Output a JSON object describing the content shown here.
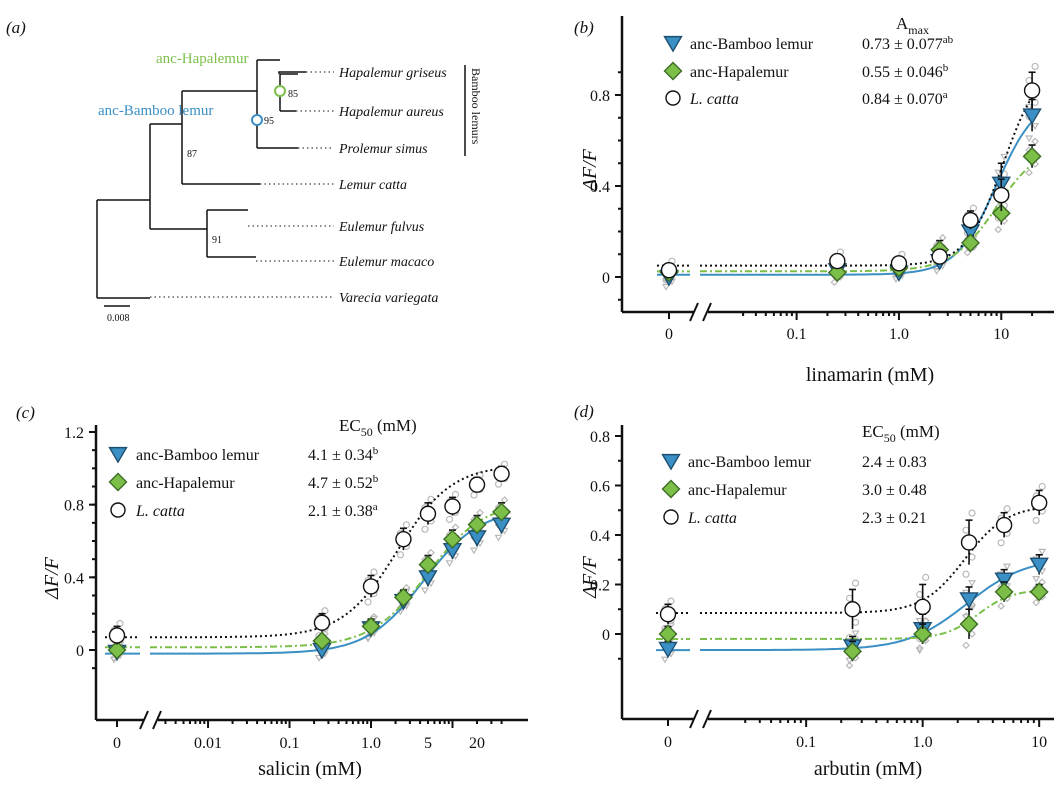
{
  "colors": {
    "bamboo": "#3a8fc4",
    "hapalemur": "#7cbf48",
    "catta": "#111111",
    "replicate_grey": "#b9b9b9"
  },
  "tree": {
    "panel_label": "(a)",
    "taxa": [
      "Hapalemur griseus",
      "Hapalemur aureus",
      "Prolemur simus",
      "Lemur catta",
      "Eulemur fulvus",
      "Eulemur macaco",
      "Varecia variegata"
    ],
    "node_labels": {
      "anc_hapalemur": "anc-Hapalemur",
      "anc_bamboo": "anc-Bamboo lemur"
    },
    "bootstrap": [
      "85",
      "95",
      "87",
      "91"
    ],
    "clade_label": "Bamboo lemurs",
    "scale_bar": "0.008"
  },
  "chart_data": [
    {
      "panel": "(b)",
      "type": "scatter",
      "xlabel": "linamarin (mM)",
      "ylabel": "ΔF/F",
      "x_scale": "log with broken axis at 0",
      "x_ticks": [
        "0",
        "0.1",
        "1.0",
        "10"
      ],
      "y_ticks": [
        "0",
        "0.4",
        "0.8"
      ],
      "ylim": [
        -0.15,
        0.95
      ],
      "legend_header": "A",
      "legend_header_sub": "max",
      "legend_position": "top-right",
      "series": [
        {
          "name": "anc-Bamboo lemur",
          "value": "0.73 ± 0.077",
          "sup": "ab",
          "x": [
            0,
            0.25,
            1,
            2.5,
            5,
            10,
            20
          ],
          "y": [
            0.0,
            0.03,
            0.02,
            0.07,
            0.2,
            0.41,
            0.71
          ],
          "err": [
            0.03,
            0.02,
            0.02,
            0.03,
            0.05,
            0.09,
            0.07
          ]
        },
        {
          "name": "anc-Hapalemur",
          "value": "0.55 ± 0.046",
          "sup": "b",
          "x": [
            0,
            0.25,
            1,
            2.5,
            5,
            10,
            20
          ],
          "y": [
            0.02,
            0.02,
            0.04,
            0.12,
            0.15,
            0.28,
            0.53
          ],
          "err": [
            0.02,
            0.03,
            0.02,
            0.04,
            0.03,
            0.05,
            0.05
          ]
        },
        {
          "name": "L. catta",
          "value": "0.84 ± 0.070",
          "sup": "a",
          "x": [
            0,
            0.25,
            1,
            2.5,
            5,
            10,
            20
          ],
          "y": [
            0.03,
            0.07,
            0.06,
            0.09,
            0.25,
            0.36,
            0.82
          ],
          "err": [
            0.03,
            0.03,
            0.03,
            0.03,
            0.04,
            0.07,
            0.08
          ]
        }
      ]
    },
    {
      "panel": "(c)",
      "type": "scatter",
      "xlabel": "salicin (mM)",
      "ylabel": "ΔF/F",
      "x_scale": "log with broken axis at 0",
      "x_ticks": [
        "0",
        "0.01",
        "0.1",
        "1.0",
        "5",
        "20"
      ],
      "y_ticks": [
        "0",
        "0.4",
        "0.8",
        "1.2"
      ],
      "ylim": [
        -0.2,
        1.25
      ],
      "legend_header": "EC",
      "legend_header_sub": "50",
      "legend_header_tail": " (mM)",
      "legend_position": "top-left",
      "series": [
        {
          "name": "anc-Bamboo lemur",
          "value": "4.1 ± 0.34",
          "sup": "b",
          "x": [
            0,
            0.25,
            1,
            2.5,
            5,
            10,
            20,
            40
          ],
          "y": [
            -0.01,
            0.0,
            0.12,
            0.27,
            0.4,
            0.55,
            0.62,
            0.69
          ],
          "err": [
            0.03,
            0.03,
            0.04,
            0.04,
            0.05,
            0.05,
            0.05,
            0.05
          ]
        },
        {
          "name": "anc-Hapalemur",
          "value": "4.7 ± 0.52",
          "sup": "b",
          "x": [
            0,
            0.25,
            1,
            2.5,
            5,
            10,
            20,
            40
          ],
          "y": [
            0.0,
            0.05,
            0.13,
            0.29,
            0.47,
            0.61,
            0.69,
            0.76
          ],
          "err": [
            0.03,
            0.03,
            0.04,
            0.04,
            0.05,
            0.05,
            0.05,
            0.05
          ]
        },
        {
          "name": "L. catta",
          "value": "2.1 ± 0.38",
          "sup": "a",
          "x": [
            0,
            0.25,
            1,
            2.5,
            5,
            10,
            20,
            40
          ],
          "y": [
            0.08,
            0.15,
            0.35,
            0.61,
            0.75,
            0.79,
            0.91,
            0.97
          ],
          "err": [
            0.05,
            0.05,
            0.06,
            0.06,
            0.06,
            0.05,
            0.04,
            0.04
          ]
        }
      ]
    },
    {
      "panel": "(d)",
      "type": "scatter",
      "xlabel": "arbutin (mM)",
      "ylabel": "ΔF/F",
      "x_scale": "log with broken axis at 0",
      "x_ticks": [
        "0",
        "0.1",
        "1.0",
        "10"
      ],
      "y_ticks": [
        "0",
        "0.2",
        "0.4",
        "0.6",
        "0.8"
      ],
      "ylim": [
        -0.15,
        0.82
      ],
      "legend_header": "EC",
      "legend_header_sub": "50",
      "legend_header_tail": " (mM)",
      "legend_position": "top-left",
      "series": [
        {
          "name": "anc-Bamboo lemur",
          "value": "2.4 ± 0.83",
          "sup": "",
          "x": [
            0,
            0.25,
            1,
            2.5,
            5,
            10
          ],
          "y": [
            -0.06,
            -0.05,
            0.02,
            0.14,
            0.22,
            0.28
          ],
          "err": [
            0.03,
            0.04,
            0.06,
            0.05,
            0.04,
            0.04
          ]
        },
        {
          "name": "anc-Hapalemur",
          "value": "3.0 ± 0.48",
          "sup": "",
          "x": [
            0,
            0.25,
            1,
            2.5,
            5,
            10
          ],
          "y": [
            0.0,
            -0.07,
            0.0,
            0.04,
            0.17,
            0.17
          ],
          "err": [
            0.03,
            0.04,
            0.04,
            0.06,
            0.04,
            0.03
          ]
        },
        {
          "name": "L. catta",
          "value": "2.3 ± 0.21",
          "sup": "",
          "x": [
            0,
            0.25,
            1,
            2.5,
            5,
            10
          ],
          "y": [
            0.08,
            0.1,
            0.11,
            0.37,
            0.44,
            0.53
          ],
          "err": [
            0.04,
            0.08,
            0.09,
            0.09,
            0.05,
            0.05
          ]
        }
      ]
    }
  ]
}
